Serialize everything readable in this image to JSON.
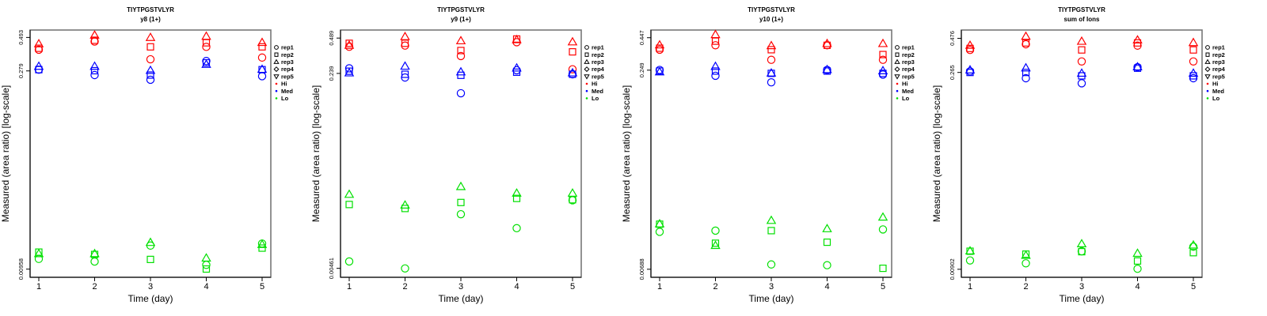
{
  "chart_data": [
    {
      "type": "scatter",
      "title": "TIYTPGSTVLYR",
      "subtitle": "y8 (1+)",
      "xlabel": "Time (day)",
      "ylabel": "Measured (area ratio) [log-scale]",
      "y_scale": "log",
      "x_ticks": [
        "1",
        "2",
        "3",
        "4",
        "5"
      ],
      "y_ticks": [
        "0.493",
        "0.279",
        "0.00958"
      ],
      "y_tick_values": [
        0.493,
        0.279,
        0.00958
      ],
      "ylim": [
        0.0088,
        0.53
      ],
      "xlim": [
        0.85,
        5.15
      ],
      "grid": false,
      "legend_position": "right",
      "series": [
        {
          "name": "Hi rep1",
          "group": "Hi",
          "rep": "rep1",
          "x": [
            1,
            2,
            3,
            4,
            5
          ],
          "y": [
            0.4,
            0.46,
            0.34,
            0.42,
            0.35
          ]
        },
        {
          "name": "Hi rep2",
          "group": "Hi",
          "rep": "rep2",
          "x": [
            1,
            2,
            3,
            4,
            5
          ],
          "y": [
            0.41,
            0.47,
            0.42,
            0.45,
            0.42
          ]
        },
        {
          "name": "Hi rep3",
          "group": "Hi",
          "rep": "rep3",
          "x": [
            1,
            2,
            3,
            4,
            5
          ],
          "y": [
            0.44,
            0.51,
            0.49,
            0.5,
            0.45
          ]
        },
        {
          "name": "Med rep1",
          "group": "Med",
          "rep": "rep1",
          "x": [
            1,
            2,
            3,
            4,
            5
          ],
          "y": [
            0.285,
            0.26,
            0.24,
            0.33,
            0.255
          ]
        },
        {
          "name": "Med rep2",
          "group": "Med",
          "rep": "rep2",
          "x": [
            1,
            2,
            3,
            4,
            5
          ],
          "y": [
            0.285,
            0.28,
            0.26,
            0.32,
            0.285
          ]
        },
        {
          "name": "Med rep3",
          "group": "Med",
          "rep": "rep3",
          "x": [
            1,
            2,
            3,
            4,
            5
          ],
          "y": [
            0.3,
            0.3,
            0.28,
            0.31,
            0.285
          ]
        },
        {
          "name": "Lo rep1",
          "group": "Lo",
          "rep": "rep1",
          "x": [
            1,
            2,
            3,
            4,
            5
          ],
          "y": [
            0.0114,
            0.0109,
            0.0143,
            0.0103,
            0.0148
          ]
        },
        {
          "name": "Lo rep2",
          "group": "Lo",
          "rep": "rep2",
          "x": [
            1,
            2,
            3,
            4,
            5
          ],
          "y": [
            0.0128,
            0.0123,
            0.0113,
            0.0096,
            0.0137
          ]
        },
        {
          "name": "Lo rep3",
          "group": "Lo",
          "rep": "rep3",
          "x": [
            1,
            2,
            3,
            4,
            5
          ],
          "y": [
            0.0124,
            0.0124,
            0.015,
            0.0115,
            0.0145
          ]
        }
      ]
    },
    {
      "type": "scatter",
      "title": "TIYTPGSTVLYR",
      "subtitle": "y9 (1+)",
      "xlabel": "Time (day)",
      "ylabel": "Measured (area ratio) [log-scale]",
      "y_scale": "log",
      "x_ticks": [
        "1",
        "2",
        "3",
        "4",
        "5"
      ],
      "y_ticks": [
        "0.489",
        "0.239",
        "0.00461"
      ],
      "y_tick_values": [
        0.489,
        0.239,
        0.00461
      ],
      "ylim": [
        0.0041,
        0.54
      ],
      "xlim": [
        0.85,
        5.15
      ],
      "grid": false,
      "legend_position": "right",
      "series": [
        {
          "name": "Hi rep1",
          "group": "Hi",
          "rep": "rep1",
          "x": [
            1,
            2,
            3,
            4,
            5
          ],
          "y": [
            0.41,
            0.42,
            0.34,
            0.45,
            0.26
          ]
        },
        {
          "name": "Hi rep2",
          "group": "Hi",
          "rep": "rep2",
          "x": [
            1,
            2,
            3,
            4,
            5
          ],
          "y": [
            0.44,
            0.44,
            0.38,
            0.48,
            0.37
          ]
        },
        {
          "name": "Hi rep3",
          "group": "Hi",
          "rep": "rep3",
          "x": [
            1,
            2,
            3,
            4,
            5
          ],
          "y": [
            0.42,
            0.5,
            0.46,
            0.47,
            0.45
          ]
        },
        {
          "name": "Med rep1",
          "group": "Med",
          "rep": "rep1",
          "x": [
            1,
            2,
            3,
            4,
            5
          ],
          "y": [
            0.265,
            0.22,
            0.16,
            0.255,
            0.235
          ]
        },
        {
          "name": "Med rep2",
          "group": "Med",
          "rep": "rep2",
          "x": [
            1,
            2,
            3,
            4,
            5
          ],
          "y": [
            0.25,
            0.235,
            0.23,
            0.245,
            0.235
          ]
        },
        {
          "name": "Med rep3",
          "group": "Med",
          "rep": "rep3",
          "x": [
            1,
            2,
            3,
            4,
            5
          ],
          "y": [
            0.24,
            0.275,
            0.245,
            0.265,
            0.24
          ]
        },
        {
          "name": "Lo rep1",
          "group": "Lo",
          "rep": "rep1",
          "x": [
            1,
            2,
            3,
            4,
            5
          ],
          "y": [
            0.0053,
            0.0046,
            0.0138,
            0.0104,
            0.0183
          ]
        },
        {
          "name": "Lo rep2",
          "group": "Lo",
          "rep": "rep2",
          "x": [
            1,
            2,
            3,
            4,
            5
          ],
          "y": [
            0.0168,
            0.0155,
            0.0175,
            0.019,
            0.0185
          ]
        },
        {
          "name": "Lo rep3",
          "group": "Lo",
          "rep": "rep3",
          "x": [
            1,
            2,
            3,
            4,
            5
          ],
          "y": [
            0.0205,
            0.0165,
            0.024,
            0.021,
            0.021
          ]
        }
      ]
    },
    {
      "type": "scatter",
      "title": "TIYTPGSTVLYR",
      "subtitle": "y10 (1+)",
      "xlabel": "Time (day)",
      "ylabel": "Measured (area ratio) [log-scale]",
      "y_scale": "log",
      "x_ticks": [
        "1",
        "2",
        "3",
        "4",
        "5"
      ],
      "y_ticks": [
        "0.447",
        "0.249",
        "0.00688"
      ],
      "y_tick_values": [
        0.447,
        0.249,
        0.00688
      ],
      "ylim": [
        0.0063,
        0.485
      ],
      "xlim": [
        0.85,
        5.15
      ],
      "grid": false,
      "legend_position": "right",
      "series": [
        {
          "name": "Hi rep1",
          "group": "Hi",
          "rep": "rep1",
          "x": [
            1,
            2,
            3,
            4,
            5
          ],
          "y": [
            0.36,
            0.39,
            0.3,
            0.39,
            0.3
          ]
        },
        {
          "name": "Hi rep2",
          "group": "Hi",
          "rep": "rep2",
          "x": [
            1,
            2,
            3,
            4,
            5
          ],
          "y": [
            0.37,
            0.42,
            0.36,
            0.39,
            0.33
          ]
        },
        {
          "name": "Hi rep3",
          "group": "Hi",
          "rep": "rep3",
          "x": [
            1,
            2,
            3,
            4,
            5
          ],
          "y": [
            0.39,
            0.47,
            0.385,
            0.4,
            0.4
          ]
        },
        {
          "name": "Med rep1",
          "group": "Med",
          "rep": "rep1",
          "x": [
            1,
            2,
            3,
            4,
            5
          ],
          "y": [
            0.25,
            0.225,
            0.2,
            0.25,
            0.23
          ]
        },
        {
          "name": "Med rep2",
          "group": "Med",
          "rep": "rep2",
          "x": [
            1,
            2,
            3,
            4,
            5
          ],
          "y": [
            0.245,
            0.245,
            0.235,
            0.245,
            0.235
          ]
        },
        {
          "name": "Med rep3",
          "group": "Med",
          "rep": "rep3",
          "x": [
            1,
            2,
            3,
            4,
            5
          ],
          "y": [
            0.24,
            0.265,
            0.235,
            0.25,
            0.245
          ]
        },
        {
          "name": "Lo rep1",
          "group": "Lo",
          "rep": "rep1",
          "x": [
            1,
            2,
            3,
            4,
            5
          ],
          "y": [
            0.0135,
            0.0138,
            0.0075,
            0.0074,
            0.0141
          ]
        },
        {
          "name": "Lo rep2",
          "group": "Lo",
          "rep": "rep2",
          "x": [
            1,
            2,
            3,
            4,
            5
          ],
          "y": [
            0.0155,
            0.011,
            0.0138,
            0.0112,
            0.007
          ]
        },
        {
          "name": "Lo rep3",
          "group": "Lo",
          "rep": "rep3",
          "x": [
            1,
            2,
            3,
            4,
            5
          ],
          "y": [
            0.0155,
            0.0105,
            0.0165,
            0.0142,
            0.0175
          ]
        }
      ]
    },
    {
      "type": "scatter",
      "title": "TIYTPGSTVLYR",
      "subtitle": "sum of Ions",
      "xlabel": "Time (day)",
      "ylabel": "Measured (area ratio) [log-scale]",
      "y_scale": "log",
      "x_ticks": [
        "1",
        "2",
        "3",
        "4",
        "5"
      ],
      "y_ticks": [
        "0.476",
        "0.265",
        "0.00902"
      ],
      "y_tick_values": [
        0.476,
        0.265,
        0.00902
      ],
      "ylim": [
        0.0083,
        0.52
      ],
      "xlim": [
        0.85,
        5.15
      ],
      "grid": false,
      "legend_position": "right",
      "series": [
        {
          "name": "Hi rep1",
          "group": "Hi",
          "rep": "rep1",
          "x": [
            1,
            2,
            3,
            4,
            5
          ],
          "y": [
            0.39,
            0.43,
            0.32,
            0.42,
            0.32
          ]
        },
        {
          "name": "Hi rep2",
          "group": "Hi",
          "rep": "rep2",
          "x": [
            1,
            2,
            3,
            4,
            5
          ],
          "y": [
            0.4,
            0.44,
            0.39,
            0.44,
            0.39
          ]
        },
        {
          "name": "Hi rep3",
          "group": "Hi",
          "rep": "rep3",
          "x": [
            1,
            2,
            3,
            4,
            5
          ],
          "y": [
            0.42,
            0.49,
            0.45,
            0.46,
            0.44
          ]
        },
        {
          "name": "Med rep1",
          "group": "Med",
          "rep": "rep1",
          "x": [
            1,
            2,
            3,
            4,
            5
          ],
          "y": [
            0.27,
            0.24,
            0.22,
            0.29,
            0.24
          ]
        },
        {
          "name": "Med rep2",
          "group": "Med",
          "rep": "rep2",
          "x": [
            1,
            2,
            3,
            4,
            5
          ],
          "y": [
            0.265,
            0.265,
            0.25,
            0.285,
            0.25
          ]
        },
        {
          "name": "Med rep3",
          "group": "Med",
          "rep": "rep3",
          "x": [
            1,
            2,
            3,
            4,
            5
          ],
          "y": [
            0.275,
            0.285,
            0.26,
            0.29,
            0.26
          ]
        },
        {
          "name": "Lo rep1",
          "group": "Lo",
          "rep": "rep1",
          "x": [
            1,
            2,
            3,
            4,
            5
          ],
          "y": [
            0.0105,
            0.01,
            0.0123,
            0.0091,
            0.0133
          ]
        },
        {
          "name": "Lo rep2",
          "group": "Lo",
          "rep": "rep2",
          "x": [
            1,
            2,
            3,
            4,
            5
          ],
          "y": [
            0.0123,
            0.0117,
            0.0122,
            0.0104,
            0.012
          ]
        },
        {
          "name": "Lo rep3",
          "group": "Lo",
          "rep": "rep3",
          "x": [
            1,
            2,
            3,
            4,
            5
          ],
          "y": [
            0.0123,
            0.0114,
            0.0139,
            0.0118,
            0.0136
          ]
        }
      ]
    }
  ],
  "legend": {
    "entries": [
      {
        "label": "rep1",
        "symbol": "circle"
      },
      {
        "label": "rep2",
        "symbol": "square"
      },
      {
        "label": "rep3",
        "symbol": "triangle-up"
      },
      {
        "label": "rep4",
        "symbol": "diamond"
      },
      {
        "label": "rep5",
        "symbol": "triangle-down"
      },
      {
        "label": "Hi",
        "symbol": "dot",
        "color": "#ff0000"
      },
      {
        "label": "Med",
        "symbol": "dot",
        "color": "#0000ff"
      },
      {
        "label": "Lo",
        "symbol": "dot",
        "color": "#00dd00"
      }
    ]
  },
  "colors": {
    "Hi": "#ff0000",
    "Med": "#0000ff",
    "Lo": "#00e000"
  }
}
